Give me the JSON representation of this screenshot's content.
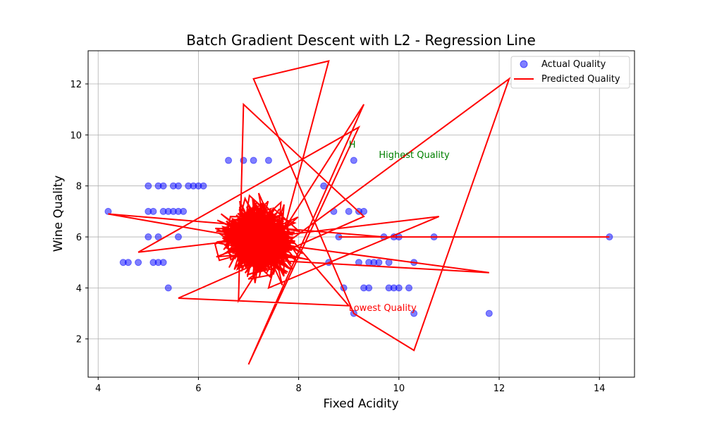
{
  "chart_data": {
    "type": "scatter",
    "title": "Batch Gradient Descent with L2 - Regression Line",
    "xlabel": "Fixed Acidity",
    "ylabel": "Wine Quality",
    "xlim": [
      3.8,
      14.7
    ],
    "ylim": [
      0.5,
      13.3
    ],
    "xticks": [
      4,
      6,
      8,
      10,
      12,
      14
    ],
    "yticks": [
      2,
      4,
      6,
      8,
      10,
      12
    ],
    "grid": true,
    "legend_position": "top-right",
    "series": [
      {
        "name": "Actual Quality",
        "kind": "scatter",
        "color": "#0000ff",
        "points": [
          [
            4.2,
            7
          ],
          [
            4.5,
            5
          ],
          [
            4.6,
            5
          ],
          [
            4.8,
            5
          ],
          [
            5.0,
            8
          ],
          [
            5.0,
            7
          ],
          [
            5.1,
            7
          ],
          [
            5.0,
            6
          ],
          [
            5.2,
            8
          ],
          [
            5.3,
            8
          ],
          [
            5.2,
            6
          ],
          [
            5.3,
            7
          ],
          [
            5.4,
            7
          ],
          [
            5.5,
            8
          ],
          [
            5.5,
            7
          ],
          [
            5.6,
            8
          ],
          [
            5.6,
            7
          ],
          [
            5.7,
            7
          ],
          [
            5.8,
            8
          ],
          [
            5.9,
            8
          ],
          [
            5.1,
            5
          ],
          [
            5.2,
            5
          ],
          [
            5.3,
            5
          ],
          [
            5.4,
            4
          ],
          [
            5.6,
            6
          ],
          [
            6.0,
            8
          ],
          [
            6.1,
            8
          ],
          [
            6.6,
            9
          ],
          [
            6.9,
            9
          ],
          [
            7.1,
            9
          ],
          [
            7.4,
            9
          ],
          [
            9.1,
            9
          ],
          [
            9.2,
            7
          ],
          [
            9.3,
            7
          ],
          [
            9.0,
            7
          ],
          [
            9.2,
            5
          ],
          [
            9.4,
            5
          ],
          [
            9.5,
            5
          ],
          [
            9.6,
            5
          ],
          [
            9.8,
            5
          ],
          [
            9.7,
            6
          ],
          [
            9.9,
            6
          ],
          [
            10.0,
            6
          ],
          [
            10.7,
            6
          ],
          [
            9.3,
            4
          ],
          [
            9.4,
            4
          ],
          [
            9.8,
            4
          ],
          [
            9.9,
            4
          ],
          [
            10.0,
            4
          ],
          [
            10.2,
            4
          ],
          [
            10.3,
            5
          ],
          [
            9.1,
            3
          ],
          [
            10.3,
            3
          ],
          [
            11.8,
            3
          ],
          [
            14.2,
            6
          ],
          [
            8.7,
            7
          ],
          [
            8.8,
            6
          ],
          [
            8.6,
            5
          ],
          [
            8.9,
            4
          ],
          [
            8.5,
            8
          ]
        ]
      },
      {
        "name": "Predicted Quality",
        "kind": "line",
        "color": "#ff0000",
        "points": [
          [
            14.2,
            6.0
          ],
          [
            8.8,
            6.0
          ],
          [
            10.7,
            6.0
          ],
          [
            9.7,
            6.0
          ],
          [
            4.2,
            6.9
          ],
          [
            8.0,
            5.6
          ],
          [
            11.8,
            4.6
          ],
          [
            7.3,
            5.1
          ],
          [
            12.2,
            12.2
          ],
          [
            10.3,
            1.55
          ],
          [
            9.1,
            3.0
          ],
          [
            7.1,
            12.2
          ],
          [
            8.6,
            12.9
          ],
          [
            7.4,
            4.0
          ],
          [
            10.8,
            6.8
          ],
          [
            4.8,
            5.4
          ],
          [
            9.2,
            10.3
          ],
          [
            7.0,
            1.0
          ],
          [
            9.3,
            11.2
          ],
          [
            6.8,
            3.5
          ],
          [
            6.9,
            11.2
          ],
          [
            9.3,
            6.8
          ],
          [
            5.6,
            3.6
          ],
          [
            9.0,
            3.3
          ]
        ]
      }
    ],
    "annotations": [
      {
        "text": "H",
        "x": 9.0,
        "y": 9.5,
        "color": "#008000"
      },
      {
        "text": "Highest Quality",
        "x": 9.6,
        "y": 9.1,
        "color": "#008000"
      },
      {
        "text": "Lowest Quality",
        "x": 9.0,
        "y": 3.1,
        "color": "#ff0000"
      }
    ]
  }
}
